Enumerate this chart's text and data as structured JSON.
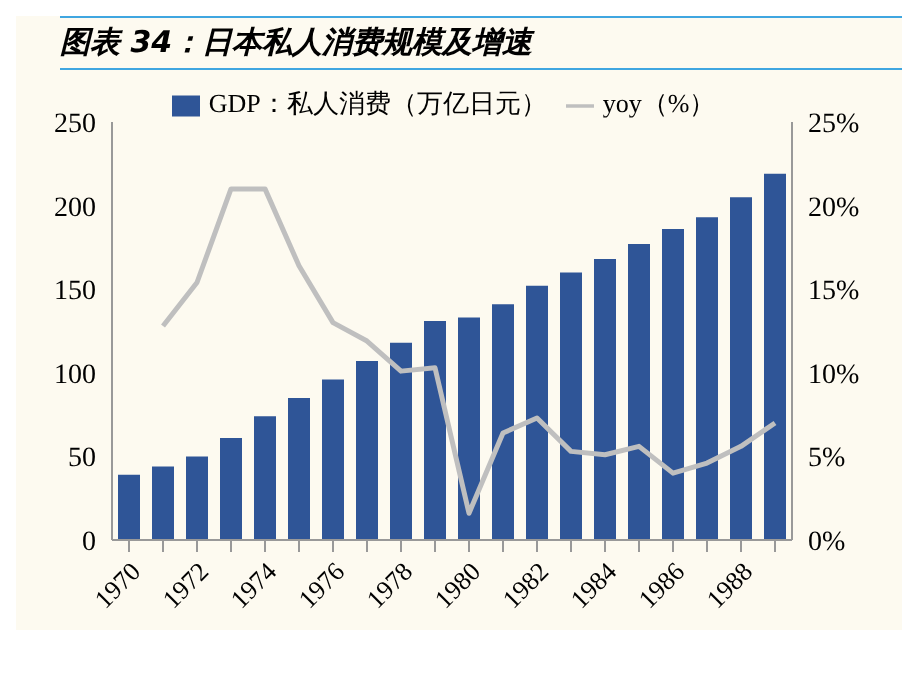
{
  "chart_data": {
    "type": "bar",
    "title": "图表 34：日本私人消费规模及增速",
    "categories": [
      "1970",
      null,
      "1972",
      null,
      "1974",
      null,
      "1976",
      null,
      "1978",
      null,
      "1980",
      null,
      "1982",
      null,
      "1984",
      null,
      "1986",
      null,
      "1988",
      null
    ],
    "series": [
      {
        "name": "GDP：私人消费（万亿日元）",
        "color": "#2f5597",
        "values": [
          39,
          44,
          50,
          61,
          74,
          85,
          96,
          107,
          118,
          131,
          133,
          141,
          152,
          160,
          168,
          177,
          186,
          193,
          205,
          219
        ]
      },
      {
        "name": "yoy（%）",
        "type": "line",
        "axis": "y2",
        "color": "#bfbfbf",
        "values": [
          null,
          12.8,
          15.4,
          21.0,
          21.0,
          16.4,
          13.0,
          11.9,
          10.1,
          10.3,
          1.6,
          6.4,
          7.3,
          5.3,
          5.1,
          5.6,
          4.0,
          4.6,
          5.6,
          7.0
        ]
      }
    ],
    "ylim": [
      0,
      250
    ],
    "yticks": [
      0,
      50,
      100,
      150,
      200,
      250
    ],
    "y2lim": [
      0,
      25
    ],
    "y2ticks": [
      {
        "value": 0,
        "label": "0%"
      },
      {
        "value": 5,
        "label": "5%"
      },
      {
        "value": 10,
        "label": "10%"
      },
      {
        "value": 15,
        "label": "15%"
      },
      {
        "value": 20,
        "label": "20%"
      },
      {
        "value": 25,
        "label": "25%"
      }
    ],
    "legend": "top",
    "grid": false,
    "marker": "none"
  }
}
